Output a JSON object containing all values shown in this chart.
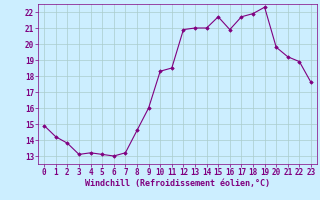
{
  "x": [
    0,
    1,
    2,
    3,
    4,
    5,
    6,
    7,
    8,
    9,
    10,
    11,
    12,
    13,
    14,
    15,
    16,
    17,
    18,
    19,
    20,
    21,
    22,
    23
  ],
  "y": [
    14.9,
    14.2,
    13.8,
    13.1,
    13.2,
    13.1,
    13.0,
    13.2,
    14.6,
    16.0,
    18.3,
    18.5,
    20.9,
    21.0,
    21.0,
    21.7,
    20.9,
    21.7,
    21.9,
    22.3,
    19.8,
    19.2,
    18.9,
    17.6
  ],
  "xlim": [
    -0.5,
    23.5
  ],
  "ylim": [
    12.5,
    22.5
  ],
  "yticks": [
    13,
    14,
    15,
    16,
    17,
    18,
    19,
    20,
    21,
    22
  ],
  "xticks": [
    0,
    1,
    2,
    3,
    4,
    5,
    6,
    7,
    8,
    9,
    10,
    11,
    12,
    13,
    14,
    15,
    16,
    17,
    18,
    19,
    20,
    21,
    22,
    23
  ],
  "xlabel": "Windchill (Refroidissement éolien,°C)",
  "line_color": "#800080",
  "marker": "D",
  "marker_size": 1.8,
  "bg_color": "#cceeff",
  "grid_color": "#aacccc",
  "xlabel_fontsize": 6.0,
  "tick_fontsize": 5.5,
  "linewidth": 0.8
}
